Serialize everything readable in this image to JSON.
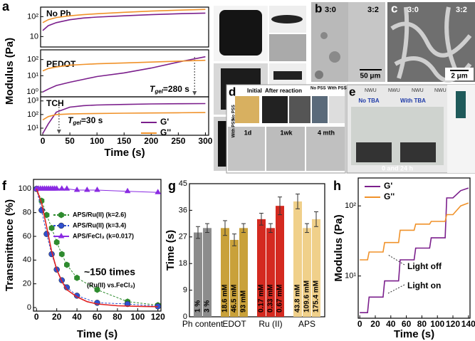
{
  "chart_data": [
    {
      "type": "line",
      "panel": "a",
      "title": "No Ph",
      "log_y": true,
      "xlim": [
        -4,
        306
      ],
      "ylim": [
        3,
        300
      ],
      "yticks": [
        10,
        {
          "value": 100,
          "label": "10²"
        }
      ],
      "x": [
        0,
        10,
        25,
        50,
        75,
        100,
        150,
        200,
        250,
        300
      ],
      "series": [
        {
          "name": "G'",
          "color": "#7b1f8c",
          "values": [
            20,
            35,
            50,
            70,
            85,
            95,
            110,
            125,
            140,
            150
          ]
        },
        {
          "name": "G''",
          "color": "#f0922a",
          "values": [
            50,
            70,
            90,
            110,
            125,
            140,
            165,
            190,
            210,
            230
          ]
        }
      ]
    },
    {
      "type": "line",
      "title": "PEDOT",
      "log_y": true,
      "ylabel": "Modulus (Pa)",
      "xlim": [
        -4,
        306
      ],
      "ylim": [
        0.5,
        400
      ],
      "yticks": [
        {
          "value": 1,
          "label": "10⁰"
        },
        {
          "value": 10,
          "label": "10¹"
        },
        {
          "value": 100,
          "label": "10²"
        }
      ],
      "annotation": [
        "T",
        "gel",
        "=280 s"
      ],
      "x": [
        0,
        10,
        25,
        50,
        75,
        100,
        150,
        200,
        250,
        300
      ],
      "series": [
        {
          "name": "G'",
          "color": "#7b1f8c",
          "values": [
            1,
            1.5,
            2.5,
            4,
            6,
            9,
            15,
            30,
            70,
            150
          ]
        },
        {
          "name": "G''",
          "color": "#f0922a",
          "values": [
            20,
            28,
            35,
            45,
            50,
            55,
            62,
            70,
            80,
            90
          ]
        }
      ]
    },
    {
      "type": "line",
      "title": "TCH",
      "log_y": true,
      "xlabel": "Time (s)",
      "xlim": [
        -4,
        306
      ],
      "ylim": [
        3,
        2000
      ],
      "xticks": [
        0,
        50,
        100,
        150,
        200,
        250,
        300
      ],
      "yticks": [
        {
          "value": 10,
          "label": "10¹"
        },
        {
          "value": 100,
          "label": "10²"
        },
        {
          "value": 1000,
          "label": "10³"
        }
      ],
      "annotation": [
        "T",
        "gel",
        "=30 s"
      ],
      "legend": "lower right",
      "x": [
        0,
        10,
        25,
        50,
        75,
        100,
        150,
        200,
        250,
        300
      ],
      "series": [
        {
          "name": "G'",
          "color": "#7b1f8c",
          "values": [
            4,
            20,
            150,
            350,
            450,
            500,
            550,
            600,
            620,
            640
          ]
        },
        {
          "name": "G''",
          "color": "#f0922a",
          "values": [
            40,
            70,
            100,
            110,
            115,
            120,
            125,
            130,
            135,
            140
          ]
        }
      ]
    },
    {
      "type": "line",
      "panel": "f",
      "xlabel": "Time (s)",
      "ylabel": "Transmittance (%)",
      "xlim": [
        -3,
        123
      ],
      "ylim": [
        -3,
        108
      ],
      "xticks": [
        0,
        20,
        40,
        60,
        80,
        100,
        120
      ],
      "yticks": [
        0,
        20,
        40,
        60,
        80,
        100
      ],
      "legend": "center left",
      "annotations": [
        "~150 times",
        "(Ru(II) vs.FeCl₃)"
      ],
      "series": [
        {
          "name": "APS/Ru(II) (k=2.6)",
          "color": "#2e8b2e",
          "marker": "hexagon",
          "dash": true,
          "x": [
            0,
            5,
            10,
            15,
            20,
            25,
            30,
            40,
            60,
            90,
            120
          ],
          "values": [
            100,
            90,
            78,
            67,
            55,
            45,
            36,
            25,
            15,
            5,
            2
          ]
        },
        {
          "name": "APS/Ru(II) (k=3.4)",
          "color": "#3050d0",
          "marker": "circle",
          "dash": true,
          "x": [
            0,
            5,
            10,
            15,
            20,
            25,
            30,
            40,
            60,
            90,
            120
          ],
          "values": [
            100,
            82,
            62,
            45,
            32,
            23,
            17,
            10,
            4,
            3,
            1
          ]
        },
        {
          "name": "APS/FeCl₃ (k=0.017)",
          "color": "#8a2be2",
          "marker": "triangle",
          "x": [
            0,
            2,
            4,
            6,
            8,
            10,
            12,
            14,
            16,
            18,
            20,
            25,
            30,
            40,
            50,
            60,
            90,
            120
          ],
          "values": [
            100,
            100,
            100,
            100,
            100,
            100,
            100,
            100,
            100,
            100,
            100,
            100,
            100,
            99,
            99,
            99,
            98,
            97
          ]
        },
        {
          "color": "#e02020",
          "x": [
            0,
            5,
            10,
            15,
            20,
            25,
            30,
            40,
            50,
            60,
            80,
            100,
            120
          ],
          "values": [
            100,
            88,
            68,
            47,
            32,
            22,
            15,
            9,
            5,
            3,
            1.5,
            1,
            0.7
          ]
        }
      ]
    },
    {
      "type": "grouped_bar",
      "panel": "g",
      "ylabel": "Time (s)",
      "ylim": [
        0,
        45
      ],
      "yticks": [
        0,
        9,
        18,
        27,
        36,
        45
      ],
      "groups": [
        {
          "name": "Ph content",
          "color": "#8c8c8c",
          "values": [
            28.5,
            30
          ],
          "errors": [
            2,
            1.5
          ],
          "bar_labels": [
            "1 %",
            "3 %"
          ]
        },
        {
          "name": "EDOT",
          "color": "#c9a13a",
          "values": [
            30,
            26,
            30
          ],
          "errors": [
            2.5,
            2,
            1.5
          ],
          "bar_labels": [
            "18.6 mM",
            "46.5 mM",
            "93 mM"
          ]
        },
        {
          "name": "Ru (II)",
          "color": "#d42a20",
          "values": [
            33,
            30,
            37.5
          ],
          "errors": [
            2,
            1.5,
            3
          ],
          "bar_labels": [
            "0.17 mM",
            "0.33 mM",
            "0.67 mM"
          ]
        },
        {
          "name": "APS",
          "color": "#f0d08a",
          "values": [
            39,
            30,
            33
          ],
          "errors": [
            2.5,
            1.5,
            2.5
          ],
          "bar_labels": [
            "43.8 mM",
            "109.6 mM",
            "175.4 mM"
          ]
        }
      ]
    },
    {
      "type": "line",
      "panel": "h",
      "log_y": true,
      "xlabel": "Time (s)",
      "ylabel": "Modulus (Pa)",
      "xlim": [
        -2,
        142
      ],
      "ylim": [
        2.5,
        250
      ],
      "xticks": [
        0,
        20,
        40,
        60,
        80,
        100,
        120,
        140
      ],
      "yticks": [
        {
          "value": 10,
          "label": "10¹"
        },
        {
          "value": 100,
          "label": "10²"
        }
      ],
      "legend": "upper left",
      "annotations": [
        "Light off",
        "Light on"
      ],
      "x": [
        0,
        10,
        12,
        20,
        30,
        32,
        40,
        50,
        52,
        60,
        70,
        72,
        80,
        90,
        92,
        100,
        110,
        112,
        120,
        130,
        140
      ],
      "series": [
        {
          "name": "G'",
          "color": "#7b1f8c",
          "values": [
            3,
            3,
            5,
            5,
            5,
            8.5,
            8.5,
            8.5,
            17,
            17,
            17,
            25,
            25,
            25,
            35,
            35,
            35,
            130,
            130,
            165,
            180
          ]
        },
        {
          "name": "G''",
          "color": "#f0922a",
          "values": [
            17,
            17,
            22,
            22,
            22,
            30,
            30,
            30,
            45,
            45,
            45,
            55,
            55,
            55,
            60,
            60,
            60,
            75,
            75,
            100,
            110
          ]
        }
      ]
    }
  ],
  "photos": {
    "b": {
      "letter": "b",
      "left": "3:0",
      "right": "3:2",
      "scale": "50 μm"
    },
    "c": {
      "letter": "c",
      "left": "3:0",
      "right": "3:2",
      "scale": "2 μm"
    },
    "d": {
      "letter": "d",
      "initial": "Initial",
      "after": "After reaction",
      "no_pss": "No PSS",
      "with_pss": "With PSS",
      "t1": "1d",
      "t2": "1wk",
      "t3": "4 mth"
    },
    "e": {
      "letter": "e",
      "no_tba": "No TBA",
      "with_tba": "With TBA",
      "time": "0 and 24 h",
      "nwu": "NWU"
    }
  }
}
